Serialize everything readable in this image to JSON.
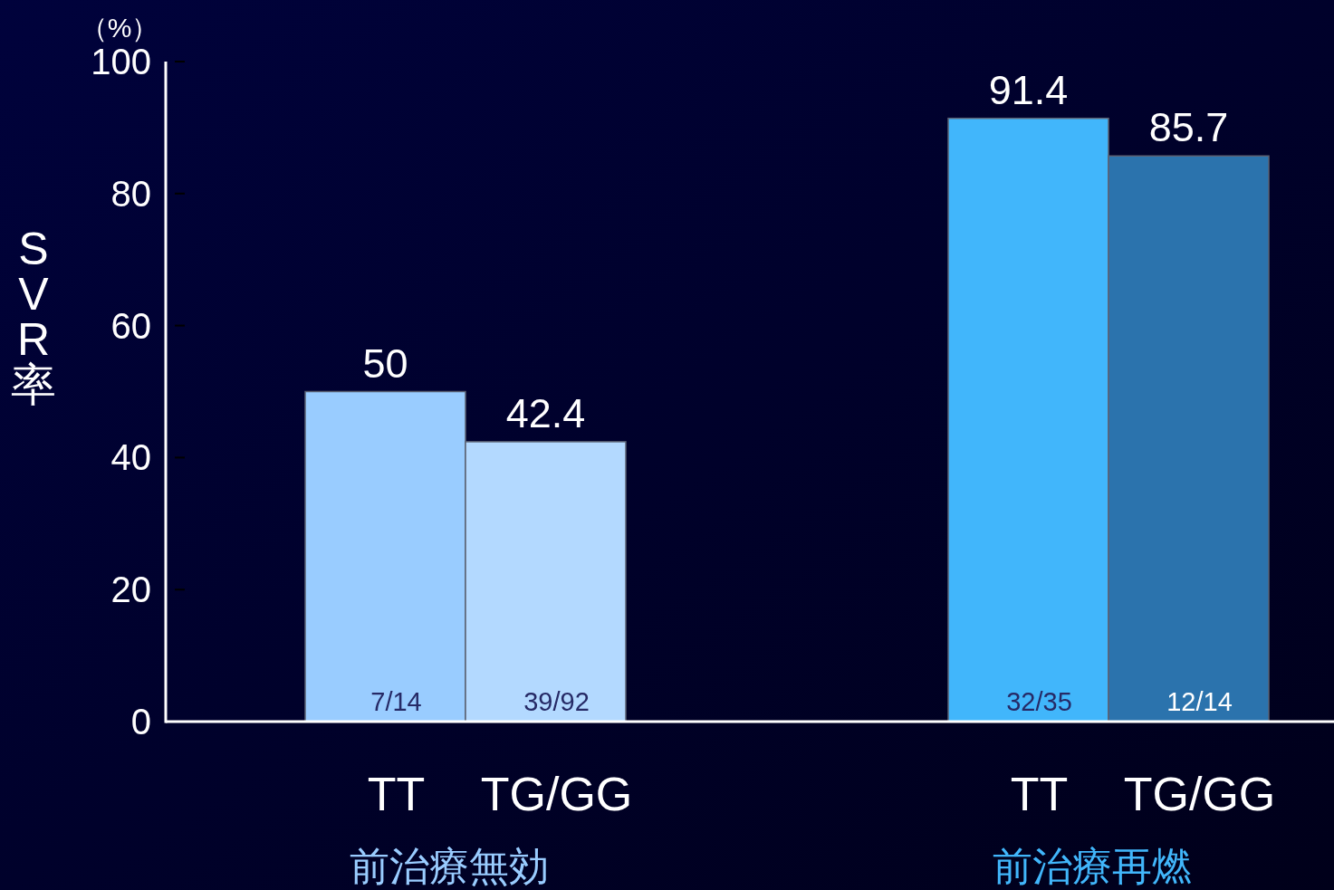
{
  "chart_data": {
    "type": "bar",
    "ylabel": "SVR率",
    "categories": [
      "前治療無効",
      "前治療再燃"
    ],
    "series": [
      {
        "name": "TT",
        "colors": [
          "#99ccff",
          "#41b6fb"
        ],
        "values": [
          50,
          91.4
        ]
      },
      {
        "name": "TG/GG",
        "colors": [
          "#b3d9ff",
          "#2b73ad"
        ],
        "values": [
          42.4,
          85.7
        ]
      }
    ],
    "ylim": [
      0,
      100
    ],
    "yticks": [
      0,
      20,
      40,
      60,
      80,
      100
    ],
    "data_labels": true,
    "annotations": [
      "（%）",
      "7/14",
      "39/92",
      "32/35",
      "12/14"
    ]
  }
}
